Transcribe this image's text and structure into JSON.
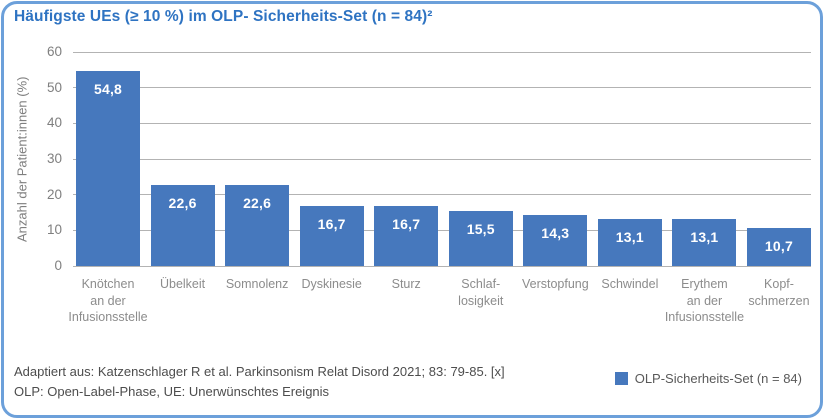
{
  "title": "Häufigste UEs (≥ 10 %) im OLP- Sicherheits-Set (n = 84)²",
  "chart_data": {
    "type": "bar",
    "title": "Häufigste UEs (≥ 10 %) im OLP- Sicherheits-Set (n = 84)²",
    "xlabel": "",
    "ylabel": "Anzahl der Patient:innen (%)",
    "ylim": [
      0,
      60
    ],
    "yticks": [
      "60",
      "50",
      "40",
      "30",
      "20",
      "10",
      "0"
    ],
    "grid": "horizontal",
    "legend_position": "bottom-right",
    "categories": [
      "Knötchen\nan der\nInfusionsstelle",
      "Übelkeit",
      "Somnolenz",
      "Dyskinesie",
      "Sturz",
      "Schlaf-\nlosigkeit",
      "Verstopfung",
      "Schwindel",
      "Erythem\nan der\nInfusionsstelle",
      "Kopf-\nschmerzen"
    ],
    "values": [
      54.8,
      22.6,
      22.6,
      16.7,
      16.7,
      15.5,
      14.3,
      13.1,
      13.1,
      10.7
    ],
    "value_labels": [
      "54,8",
      "22,6",
      "22,6",
      "16,7",
      "16,7",
      "15,5",
      "14,3",
      "13,1",
      "13,1",
      "10,7"
    ],
    "series_name": "OLP-Sicherheits-Set (n = 84)",
    "bar_color": "#4678BD"
  },
  "legend": {
    "label": "OLP-Sicherheits-Set (n = 84)",
    "marker_color": "#4678BD"
  },
  "footer": {
    "line1": "Adaptiert aus: Katzenschlager R et al. Parkinsonism Relat Disord 2021; 83: 79-85. [x]",
    "line2": "OLP: Open-Label-Phase, UE: Unerwünschtes Ereignis"
  },
  "colors": {
    "title_blue": "#2E73C2",
    "border_blue": "#6CA0DA",
    "bar_blue": "#4678BD",
    "gridline_gray": "#B3B3B3",
    "axis_label_gray": "#7F7F7F",
    "footer_gray": "#4D4D4D"
  }
}
